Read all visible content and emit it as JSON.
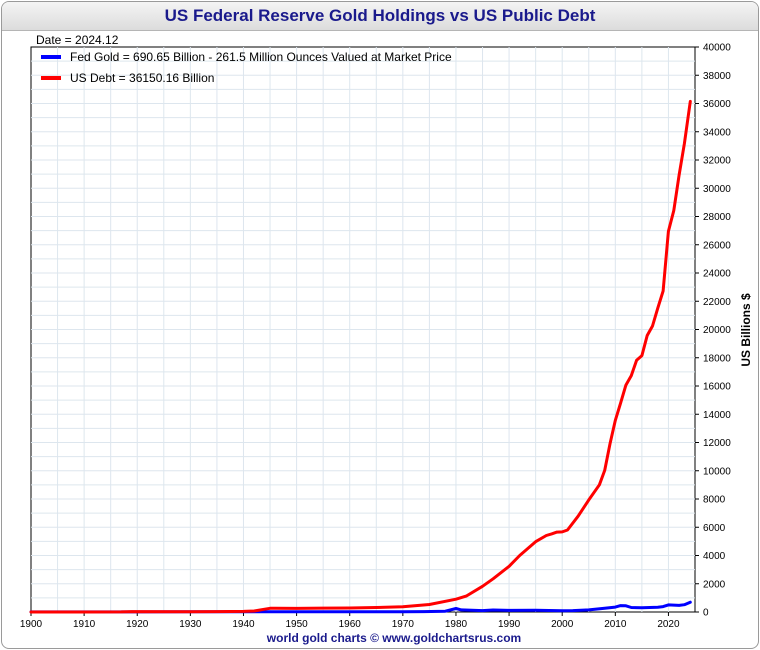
{
  "chart_data": {
    "type": "line",
    "title": "US Federal Reserve Gold Holdings vs US Public Debt",
    "date_label": "Date = 2024.12",
    "ylabel": "US Billions $",
    "footer": "world gold charts © www.goldchartsrus.com",
    "xlim": [
      1900,
      2025
    ],
    "ylim": [
      0,
      40000
    ],
    "x_ticks": [
      1900,
      1910,
      1920,
      1930,
      1940,
      1950,
      1960,
      1970,
      1980,
      1990,
      2000,
      2010,
      2020
    ],
    "y_ticks": [
      0,
      2000,
      4000,
      6000,
      8000,
      10000,
      12000,
      14000,
      16000,
      18000,
      20000,
      22000,
      24000,
      26000,
      28000,
      30000,
      32000,
      34000,
      36000,
      38000,
      40000
    ],
    "grid": true,
    "legend_position": "top-left",
    "series": [
      {
        "name": "Fed Gold = 690.65 Billion - 261.5 Million Ounces Valued at Market Price",
        "color": "#0000ff",
        "points": [
          [
            1900,
            5
          ],
          [
            1910,
            7
          ],
          [
            1920,
            10
          ],
          [
            1930,
            15
          ],
          [
            1934,
            20
          ],
          [
            1940,
            22
          ],
          [
            1945,
            20
          ],
          [
            1950,
            23
          ],
          [
            1955,
            22
          ],
          [
            1960,
            18
          ],
          [
            1965,
            14
          ],
          [
            1970,
            11
          ],
          [
            1974,
            30
          ],
          [
            1978,
            60
          ],
          [
            1980,
            250
          ],
          [
            1981,
            150
          ],
          [
            1985,
            100
          ],
          [
            1987,
            140
          ],
          [
            1990,
            110
          ],
          [
            1995,
            120
          ],
          [
            2000,
            90
          ],
          [
            2002,
            100
          ],
          [
            2005,
            150
          ],
          [
            2008,
            260
          ],
          [
            2010,
            350
          ],
          [
            2011,
            450
          ],
          [
            2012,
            440
          ],
          [
            2013,
            320
          ],
          [
            2015,
            300
          ],
          [
            2018,
            340
          ],
          [
            2019,
            380
          ],
          [
            2020,
            500
          ],
          [
            2022,
            470
          ],
          [
            2023,
            520
          ],
          [
            2024.12,
            690.65
          ]
        ]
      },
      {
        "name": "US Debt = 36150.16 Billion",
        "color": "#ff0000",
        "points": [
          [
            1900,
            2
          ],
          [
            1910,
            3
          ],
          [
            1917,
            5
          ],
          [
            1919,
            25
          ],
          [
            1930,
            16
          ],
          [
            1935,
            29
          ],
          [
            1940,
            43
          ],
          [
            1942,
            72
          ],
          [
            1943,
            136
          ],
          [
            1944,
            201
          ],
          [
            1945,
            259
          ],
          [
            1946,
            269
          ],
          [
            1950,
            257
          ],
          [
            1955,
            274
          ],
          [
            1960,
            286
          ],
          [
            1965,
            317
          ],
          [
            1970,
            370
          ],
          [
            1975,
            533
          ],
          [
            1980,
            908
          ],
          [
            1982,
            1142
          ],
          [
            1985,
            1823
          ],
          [
            1987,
            2350
          ],
          [
            1990,
            3233
          ],
          [
            1992,
            4000
          ],
          [
            1995,
            4974
          ],
          [
            1997,
            5413
          ],
          [
            1998,
            5526
          ],
          [
            1999,
            5656
          ],
          [
            2000,
            5674
          ],
          [
            2001,
            5807
          ],
          [
            2003,
            6783
          ],
          [
            2005,
            7933
          ],
          [
            2007,
            9008
          ],
          [
            2008,
            10025
          ],
          [
            2009,
            11910
          ],
          [
            2010,
            13562
          ],
          [
            2011,
            14790
          ],
          [
            2012,
            16066
          ],
          [
            2013,
            16738
          ],
          [
            2014,
            17824
          ],
          [
            2015,
            18151
          ],
          [
            2016,
            19573
          ],
          [
            2017,
            20245
          ],
          [
            2018,
            21516
          ],
          [
            2019,
            22719
          ],
          [
            2020,
            26945
          ],
          [
            2021,
            28428
          ],
          [
            2022,
            30929
          ],
          [
            2023,
            33167
          ],
          [
            2024.12,
            36150.16
          ]
        ]
      }
    ]
  }
}
